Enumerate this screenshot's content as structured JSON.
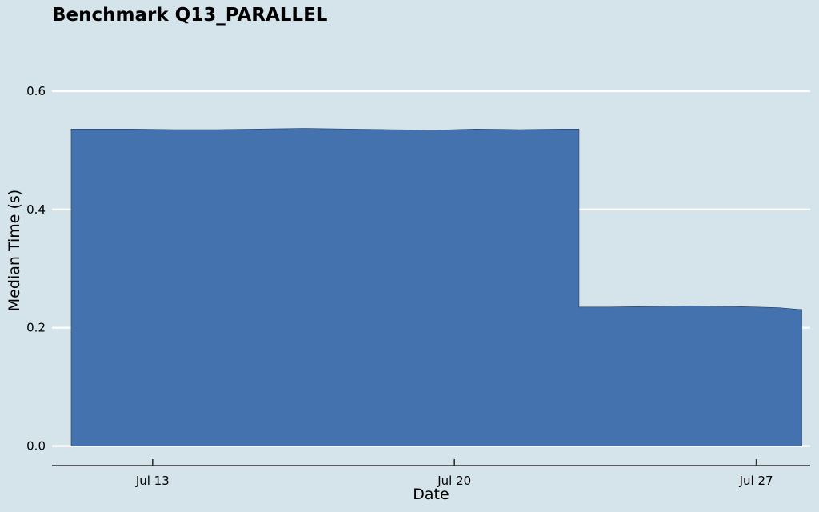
{
  "colors": {
    "background": "#d5e3ea",
    "area_fill": "#4472ae",
    "grid": "#ffffff",
    "axis": "#333333"
  },
  "chart_data": {
    "type": "area",
    "title": "Benchmark Q13_PARALLEL",
    "xlabel": "Date",
    "ylabel": "Median Time (s)",
    "x_axis_type": "date",
    "xlim": [
      "2024-07-10 16:00",
      "2024-07-28 06:00"
    ],
    "ylim": [
      -0.033,
      0.7
    ],
    "x_ticks": [
      {
        "label": "Jul 13",
        "date": "2024-07-13"
      },
      {
        "label": "Jul 20",
        "date": "2024-07-20"
      },
      {
        "label": "Jul 27",
        "date": "2024-07-27"
      }
    ],
    "y_ticks": [
      {
        "label": "0.0",
        "value": 0.0
      },
      {
        "label": "0.2",
        "value": 0.2
      },
      {
        "label": "0.4",
        "value": 0.4
      },
      {
        "label": "0.6",
        "value": 0.6
      }
    ],
    "grid": "horizontal",
    "legend": "none",
    "series": [
      {
        "points": [
          {
            "x": "2024-07-11 12:00",
            "y": 0.536
          },
          {
            "x": "2024-07-12 12:00",
            "y": 0.536
          },
          {
            "x": "2024-07-13 12:00",
            "y": 0.535
          },
          {
            "x": "2024-07-14 12:00",
            "y": 0.535
          },
          {
            "x": "2024-07-15 12:00",
            "y": 0.536
          },
          {
            "x": "2024-07-16 12:00",
            "y": 0.537
          },
          {
            "x": "2024-07-17 12:00",
            "y": 0.536
          },
          {
            "x": "2024-07-18 12:00",
            "y": 0.535
          },
          {
            "x": "2024-07-19 12:00",
            "y": 0.534
          },
          {
            "x": "2024-07-20 12:00",
            "y": 0.536
          },
          {
            "x": "2024-07-21 12:00",
            "y": 0.535
          },
          {
            "x": "2024-07-22 12:00",
            "y": 0.536
          },
          {
            "x": "2024-07-23 12:00",
            "y": 0.235
          },
          {
            "x": "2024-07-24 12:00",
            "y": 0.236
          },
          {
            "x": "2024-07-25 12:00",
            "y": 0.237
          },
          {
            "x": "2024-07-26 12:00",
            "y": 0.236
          },
          {
            "x": "2024-07-27 12:00",
            "y": 0.234
          },
          {
            "x": "2024-07-28 00:00",
            "y": 0.231
          }
        ]
      }
    ]
  }
}
